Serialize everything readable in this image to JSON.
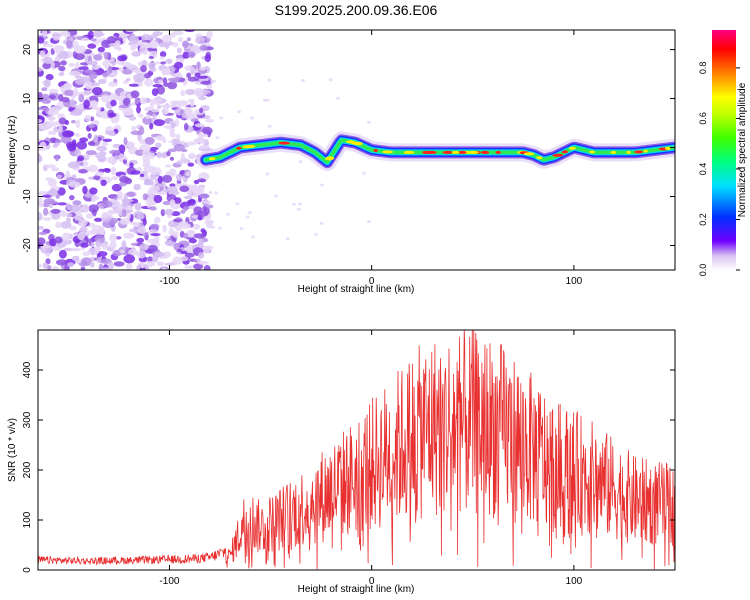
{
  "title": "S199.2025.200.09.36.E06",
  "chart_data": [
    {
      "type": "heatmap",
      "xlabel": "Height of straight line (km)",
      "ylabel": "Frequency (Hz)",
      "xlim": [
        -165,
        150
      ],
      "ylim": [
        -25,
        24
      ],
      "xticks": [
        -100,
        0,
        100
      ],
      "yticks": [
        -20,
        -10,
        0,
        10,
        20
      ],
      "colorbar": {
        "label": "Normalized spectral amplitude",
        "range": [
          0,
          0.95
        ],
        "ticks": [
          "0.0",
          "0.2",
          "0.4",
          "0.6",
          "0.8"
        ]
      },
      "noise_region_x": [
        -165,
        -80
      ],
      "ridge": {
        "x": [
          -82,
          -75,
          -65,
          -55,
          -45,
          -35,
          -28,
          -22,
          -15,
          -8,
          0,
          10,
          20,
          40,
          60,
          75,
          80,
          85,
          90,
          100,
          110,
          130,
          140,
          150
        ],
        "y": [
          -2.5,
          -2,
          0,
          0.5,
          1,
          0.5,
          -1,
          -3,
          1.5,
          1,
          -0.5,
          -1,
          -1,
          -1,
          -1,
          -1,
          -1.5,
          -2.5,
          -2,
          0,
          -1,
          -1,
          -0.5,
          0
        ]
      }
    },
    {
      "type": "line",
      "xlabel": "Height of straight line (km)",
      "ylabel": "SNR (10 * v/v)",
      "xlim": [
        -165,
        150
      ],
      "ylim": [
        0,
        480
      ],
      "xticks": [
        -100,
        0,
        100
      ],
      "yticks": [
        0,
        100,
        200,
        300,
        400
      ],
      "color": "#e83030",
      "envelope": {
        "x": [
          -165,
          -140,
          -110,
          -90,
          -80,
          -70,
          -62,
          -55,
          -40,
          -25,
          -10,
          0,
          10,
          20,
          30,
          40,
          50,
          60,
          70,
          80,
          90,
          100,
          110,
          120,
          130,
          140,
          150
        ],
        "y": [
          20,
          18,
          20,
          22,
          25,
          40,
          150,
          120,
          160,
          210,
          260,
          300,
          340,
          380,
          410,
          420,
          420,
          410,
          380,
          340,
          300,
          280,
          260,
          230,
          200,
          190,
          185
        ]
      }
    }
  ]
}
